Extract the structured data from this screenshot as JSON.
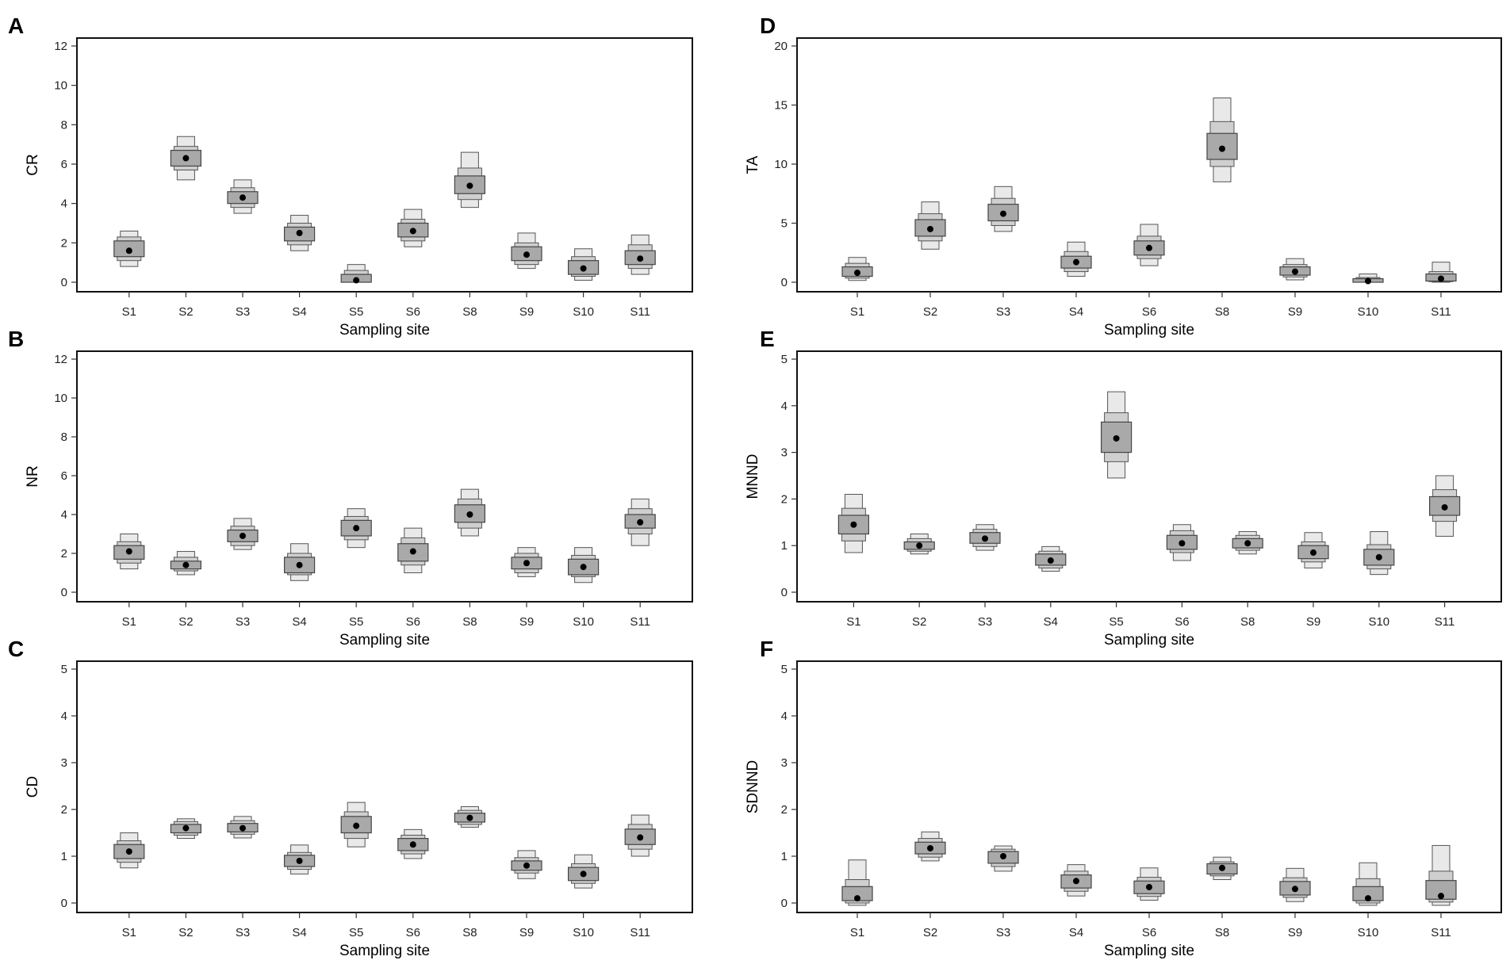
{
  "figure": {
    "shared_xlabel": "Sampling site"
  },
  "chart_data": [
    {
      "panel": "A",
      "type": "letter-value-boxplot",
      "ylabel": "CR",
      "xlabel": "Sampling site",
      "ylim": [
        0,
        12
      ],
      "yticks": [
        0,
        2,
        4,
        6,
        8,
        10,
        12
      ],
      "categories": [
        "S1",
        "S2",
        "S3",
        "S4",
        "S5",
        "S6",
        "S8",
        "S9",
        "S10",
        "S11"
      ],
      "boxes": [
        {
          "site": "S1",
          "median": 1.6,
          "inner": [
            1.3,
            2.1
          ],
          "mid": [
            1.1,
            2.3
          ],
          "outer": [
            0.8,
            2.6
          ]
        },
        {
          "site": "S2",
          "median": 6.3,
          "inner": [
            5.9,
            6.7
          ],
          "mid": [
            5.7,
            6.9
          ],
          "outer": [
            5.2,
            7.4
          ]
        },
        {
          "site": "S3",
          "median": 4.3,
          "inner": [
            4.0,
            4.6
          ],
          "mid": [
            3.8,
            4.8
          ],
          "outer": [
            3.5,
            5.2
          ]
        },
        {
          "site": "S4",
          "median": 2.5,
          "inner": [
            2.1,
            2.8
          ],
          "mid": [
            1.9,
            3.0
          ],
          "outer": [
            1.6,
            3.4
          ]
        },
        {
          "site": "S5",
          "median": 0.1,
          "inner": [
            0.0,
            0.4
          ],
          "mid": [
            0.0,
            0.6
          ],
          "outer": [
            0.0,
            0.9
          ]
        },
        {
          "site": "S6",
          "median": 2.6,
          "inner": [
            2.3,
            3.0
          ],
          "mid": [
            2.1,
            3.2
          ],
          "outer": [
            1.8,
            3.7
          ]
        },
        {
          "site": "S8",
          "median": 4.9,
          "inner": [
            4.5,
            5.4
          ],
          "mid": [
            4.2,
            5.8
          ],
          "outer": [
            3.8,
            6.6
          ]
        },
        {
          "site": "S9",
          "median": 1.4,
          "inner": [
            1.1,
            1.8
          ],
          "mid": [
            0.9,
            2.0
          ],
          "outer": [
            0.7,
            2.5
          ]
        },
        {
          "site": "S10",
          "median": 0.7,
          "inner": [
            0.4,
            1.1
          ],
          "mid": [
            0.3,
            1.3
          ],
          "outer": [
            0.1,
            1.7
          ]
        },
        {
          "site": "S11",
          "median": 1.2,
          "inner": [
            0.9,
            1.6
          ],
          "mid": [
            0.7,
            1.9
          ],
          "outer": [
            0.4,
            2.4
          ]
        }
      ]
    },
    {
      "panel": "B",
      "type": "letter-value-boxplot",
      "ylabel": "NR",
      "xlabel": "Sampling site",
      "ylim": [
        0,
        12
      ],
      "yticks": [
        0,
        2,
        4,
        6,
        8,
        10,
        12
      ],
      "categories": [
        "S1",
        "S2",
        "S3",
        "S4",
        "S5",
        "S6",
        "S8",
        "S9",
        "S10",
        "S11"
      ],
      "boxes": [
        {
          "site": "S1",
          "median": 2.1,
          "inner": [
            1.7,
            2.4
          ],
          "mid": [
            1.5,
            2.6
          ],
          "outer": [
            1.2,
            3.0
          ]
        },
        {
          "site": "S2",
          "median": 1.4,
          "inner": [
            1.2,
            1.6
          ],
          "mid": [
            1.1,
            1.8
          ],
          "outer": [
            0.9,
            2.1
          ]
        },
        {
          "site": "S3",
          "median": 2.9,
          "inner": [
            2.6,
            3.2
          ],
          "mid": [
            2.4,
            3.4
          ],
          "outer": [
            2.2,
            3.8
          ]
        },
        {
          "site": "S4",
          "median": 1.4,
          "inner": [
            1.0,
            1.8
          ],
          "mid": [
            0.9,
            2.0
          ],
          "outer": [
            0.6,
            2.5
          ]
        },
        {
          "site": "S5",
          "median": 3.3,
          "inner": [
            2.9,
            3.7
          ],
          "mid": [
            2.7,
            3.9
          ],
          "outer": [
            2.3,
            4.3
          ]
        },
        {
          "site": "S6",
          "median": 2.1,
          "inner": [
            1.6,
            2.5
          ],
          "mid": [
            1.4,
            2.8
          ],
          "outer": [
            1.0,
            3.3
          ]
        },
        {
          "site": "S8",
          "median": 4.0,
          "inner": [
            3.6,
            4.5
          ],
          "mid": [
            3.3,
            4.8
          ],
          "outer": [
            2.9,
            5.3
          ]
        },
        {
          "site": "S9",
          "median": 1.5,
          "inner": [
            1.2,
            1.8
          ],
          "mid": [
            1.0,
            2.0
          ],
          "outer": [
            0.8,
            2.3
          ]
        },
        {
          "site": "S10",
          "median": 1.3,
          "inner": [
            0.9,
            1.7
          ],
          "mid": [
            0.8,
            1.9
          ],
          "outer": [
            0.5,
            2.3
          ]
        },
        {
          "site": "S11",
          "median": 3.6,
          "inner": [
            3.3,
            4.0
          ],
          "mid": [
            3.0,
            4.3
          ],
          "outer": [
            2.4,
            4.8
          ]
        }
      ]
    },
    {
      "panel": "C",
      "type": "letter-value-boxplot",
      "ylabel": "CD",
      "xlabel": "Sampling site",
      "ylim": [
        0,
        5
      ],
      "yticks": [
        0,
        1,
        2,
        3,
        4,
        5
      ],
      "categories": [
        "S1",
        "S2",
        "S3",
        "S4",
        "S5",
        "S6",
        "S8",
        "S9",
        "S10",
        "S11"
      ],
      "boxes": [
        {
          "site": "S1",
          "median": 1.1,
          "inner": [
            0.95,
            1.25
          ],
          "mid": [
            0.87,
            1.33
          ],
          "outer": [
            0.75,
            1.5
          ]
        },
        {
          "site": "S2",
          "median": 1.6,
          "inner": [
            1.5,
            1.68
          ],
          "mid": [
            1.45,
            1.74
          ],
          "outer": [
            1.38,
            1.8
          ]
        },
        {
          "site": "S3",
          "median": 1.6,
          "inner": [
            1.52,
            1.7
          ],
          "mid": [
            1.47,
            1.76
          ],
          "outer": [
            1.39,
            1.85
          ]
        },
        {
          "site": "S4",
          "median": 0.9,
          "inner": [
            0.78,
            1.02
          ],
          "mid": [
            0.72,
            1.08
          ],
          "outer": [
            0.62,
            1.24
          ]
        },
        {
          "site": "S5",
          "median": 1.65,
          "inner": [
            1.5,
            1.85
          ],
          "mid": [
            1.38,
            1.95
          ],
          "outer": [
            1.2,
            2.15
          ]
        },
        {
          "site": "S6",
          "median": 1.25,
          "inner": [
            1.12,
            1.38
          ],
          "mid": [
            1.05,
            1.45
          ],
          "outer": [
            0.95,
            1.57
          ]
        },
        {
          "site": "S8",
          "median": 1.82,
          "inner": [
            1.73,
            1.92
          ],
          "mid": [
            1.68,
            1.98
          ],
          "outer": [
            1.62,
            2.06
          ]
        },
        {
          "site": "S9",
          "median": 0.8,
          "inner": [
            0.7,
            0.9
          ],
          "mid": [
            0.64,
            0.97
          ],
          "outer": [
            0.52,
            1.12
          ]
        },
        {
          "site": "S10",
          "median": 0.62,
          "inner": [
            0.48,
            0.76
          ],
          "mid": [
            0.42,
            0.84
          ],
          "outer": [
            0.32,
            1.03
          ]
        },
        {
          "site": "S11",
          "median": 1.4,
          "inner": [
            1.25,
            1.58
          ],
          "mid": [
            1.15,
            1.68
          ],
          "outer": [
            1.0,
            1.88
          ]
        }
      ]
    },
    {
      "panel": "D",
      "type": "letter-value-boxplot",
      "ylabel": "TA",
      "xlabel": "Sampling site",
      "ylim": [
        0,
        20
      ],
      "yticks": [
        0,
        5,
        10,
        15,
        20
      ],
      "categories": [
        "S1",
        "S2",
        "S3",
        "S4",
        "S6",
        "S8",
        "S9",
        "S10",
        "S11"
      ],
      "boxes": [
        {
          "site": "S1",
          "median": 0.8,
          "inner": [
            0.5,
            1.3
          ],
          "mid": [
            0.35,
            1.6
          ],
          "outer": [
            0.15,
            2.1
          ]
        },
        {
          "site": "S2",
          "median": 4.5,
          "inner": [
            3.9,
            5.3
          ],
          "mid": [
            3.5,
            5.8
          ],
          "outer": [
            2.8,
            6.8
          ]
        },
        {
          "site": "S3",
          "median": 5.8,
          "inner": [
            5.2,
            6.6
          ],
          "mid": [
            4.8,
            7.1
          ],
          "outer": [
            4.3,
            8.1
          ]
        },
        {
          "site": "S4",
          "median": 1.7,
          "inner": [
            1.2,
            2.2
          ],
          "mid": [
            0.9,
            2.6
          ],
          "outer": [
            0.5,
            3.4
          ]
        },
        {
          "site": "S6",
          "median": 2.9,
          "inner": [
            2.3,
            3.5
          ],
          "mid": [
            2.0,
            3.9
          ],
          "outer": [
            1.4,
            4.9
          ]
        },
        {
          "site": "S8",
          "median": 11.3,
          "inner": [
            10.4,
            12.6
          ],
          "mid": [
            9.8,
            13.6
          ],
          "outer": [
            8.5,
            15.6
          ]
        },
        {
          "site": "S9",
          "median": 0.9,
          "inner": [
            0.6,
            1.3
          ],
          "mid": [
            0.45,
            1.5
          ],
          "outer": [
            0.2,
            2.0
          ]
        },
        {
          "site": "S10",
          "median": 0.1,
          "inner": [
            0.0,
            0.3
          ],
          "mid": [
            0.0,
            0.4
          ],
          "outer": [
            0.0,
            0.7
          ]
        },
        {
          "site": "S11",
          "median": 0.3,
          "inner": [
            0.1,
            0.7
          ],
          "mid": [
            0.05,
            0.9
          ],
          "outer": [
            0.0,
            1.7
          ]
        }
      ]
    },
    {
      "panel": "E",
      "type": "letter-value-boxplot",
      "ylabel": "MNND",
      "xlabel": "Sampling site",
      "ylim": [
        0,
        5
      ],
      "yticks": [
        0,
        1,
        2,
        3,
        4,
        5
      ],
      "categories": [
        "S1",
        "S2",
        "S3",
        "S4",
        "S5",
        "S6",
        "S8",
        "S9",
        "S10",
        "S11"
      ],
      "boxes": [
        {
          "site": "S1",
          "median": 1.45,
          "inner": [
            1.25,
            1.65
          ],
          "mid": [
            1.1,
            1.8
          ],
          "outer": [
            0.85,
            2.1
          ]
        },
        {
          "site": "S2",
          "median": 1.0,
          "inner": [
            0.92,
            1.08
          ],
          "mid": [
            0.88,
            1.15
          ],
          "outer": [
            0.82,
            1.25
          ]
        },
        {
          "site": "S3",
          "median": 1.15,
          "inner": [
            1.05,
            1.28
          ],
          "mid": [
            0.98,
            1.35
          ],
          "outer": [
            0.9,
            1.45
          ]
        },
        {
          "site": "S4",
          "median": 0.68,
          "inner": [
            0.58,
            0.82
          ],
          "mid": [
            0.52,
            0.88
          ],
          "outer": [
            0.45,
            0.98
          ]
        },
        {
          "site": "S5",
          "median": 3.3,
          "inner": [
            3.0,
            3.65
          ],
          "mid": [
            2.8,
            3.85
          ],
          "outer": [
            2.45,
            4.3
          ]
        },
        {
          "site": "S6",
          "median": 1.05,
          "inner": [
            0.92,
            1.22
          ],
          "mid": [
            0.85,
            1.32
          ],
          "outer": [
            0.68,
            1.45
          ]
        },
        {
          "site": "S8",
          "median": 1.05,
          "inner": [
            0.95,
            1.15
          ],
          "mid": [
            0.9,
            1.22
          ],
          "outer": [
            0.82,
            1.3
          ]
        },
        {
          "site": "S9",
          "median": 0.85,
          "inner": [
            0.72,
            1.0
          ],
          "mid": [
            0.65,
            1.08
          ],
          "outer": [
            0.52,
            1.28
          ]
        },
        {
          "site": "S10",
          "median": 0.75,
          "inner": [
            0.58,
            0.92
          ],
          "mid": [
            0.5,
            1.02
          ],
          "outer": [
            0.38,
            1.3
          ]
        },
        {
          "site": "S11",
          "median": 1.82,
          "inner": [
            1.65,
            2.05
          ],
          "mid": [
            1.52,
            2.2
          ],
          "outer": [
            1.2,
            2.5
          ]
        }
      ]
    },
    {
      "panel": "F",
      "type": "letter-value-boxplot",
      "ylabel": "SDNND",
      "xlabel": "Sampling site",
      "ylim": [
        0,
        5
      ],
      "yticks": [
        0,
        1,
        2,
        3,
        4,
        5
      ],
      "categories": [
        "S1",
        "S2",
        "S3",
        "S4",
        "S6",
        "S8",
        "S9",
        "S10",
        "S11"
      ],
      "boxes": [
        {
          "site": "S1",
          "median": 0.1,
          "inner": [
            0.05,
            0.35
          ],
          "mid": [
            0.0,
            0.5
          ],
          "outer": [
            -0.05,
            0.92
          ]
        },
        {
          "site": "S2",
          "median": 1.17,
          "inner": [
            1.05,
            1.3
          ],
          "mid": [
            0.98,
            1.38
          ],
          "outer": [
            0.9,
            1.52
          ]
        },
        {
          "site": "S3",
          "median": 1.0,
          "inner": [
            0.85,
            1.1
          ],
          "mid": [
            0.78,
            1.15
          ],
          "outer": [
            0.68,
            1.22
          ]
        },
        {
          "site": "S4",
          "median": 0.47,
          "inner": [
            0.32,
            0.6
          ],
          "mid": [
            0.25,
            0.68
          ],
          "outer": [
            0.15,
            0.82
          ]
        },
        {
          "site": "S6",
          "median": 0.34,
          "inner": [
            0.2,
            0.47
          ],
          "mid": [
            0.14,
            0.55
          ],
          "outer": [
            0.06,
            0.75
          ]
        },
        {
          "site": "S8",
          "median": 0.75,
          "inner": [
            0.62,
            0.84
          ],
          "mid": [
            0.58,
            0.88
          ],
          "outer": [
            0.5,
            0.98
          ]
        },
        {
          "site": "S9",
          "median": 0.3,
          "inner": [
            0.17,
            0.46
          ],
          "mid": [
            0.12,
            0.54
          ],
          "outer": [
            0.03,
            0.74
          ]
        },
        {
          "site": "S10",
          "median": 0.1,
          "inner": [
            0.05,
            0.35
          ],
          "mid": [
            0.0,
            0.52
          ],
          "outer": [
            -0.05,
            0.86
          ]
        },
        {
          "site": "S11",
          "median": 0.15,
          "inner": [
            0.08,
            0.48
          ],
          "mid": [
            0.02,
            0.68
          ],
          "outer": [
            -0.05,
            1.23
          ]
        }
      ]
    }
  ]
}
